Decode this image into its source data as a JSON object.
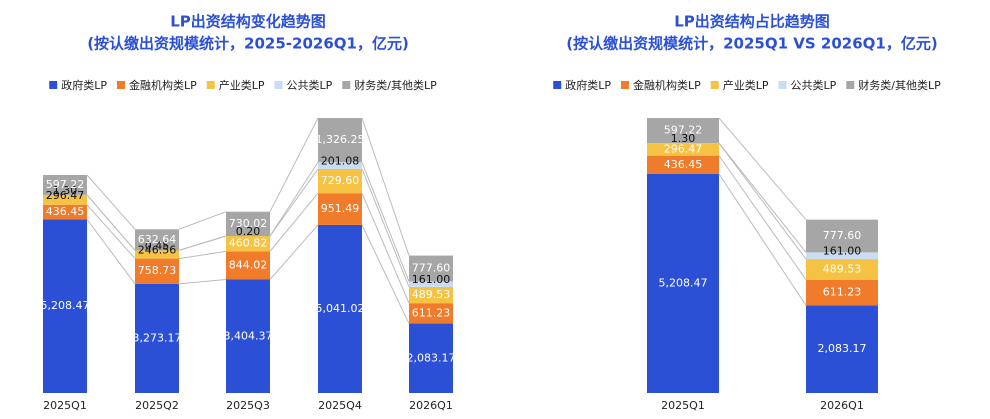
{
  "chart_data": [
    {
      "type": "bar",
      "stacked": true,
      "legend": "top",
      "title": "LP出资结构变化趋势图",
      "subtitle": "(按认缴出资规模统计，2025-2026Q1，亿元)",
      "categories": [
        "2025Q1",
        "2025Q2",
        "2025Q3",
        "2025Q4",
        "2026Q1"
      ],
      "series": [
        {
          "name": "政府类LP",
          "color": "#2b50d6",
          "values": [
            5208.47,
            3273.17,
            3404.37,
            5041.02,
            2083.17
          ],
          "value_labels": [
            "5,208.47",
            "3,273.17",
            "3,404.37",
            "5,041.02",
            "2,083.17"
          ]
        },
        {
          "name": "金融机构类LP",
          "color": "#f07b2b",
          "values": [
            436.45,
            758.73,
            844.02,
            951.49,
            611.23
          ],
          "value_labels": [
            "436.45",
            "758.73",
            "844.02",
            "951.49",
            "611.23"
          ]
        },
        {
          "name": "产业类LP",
          "color": "#f6c244",
          "values": [
            296.47,
            246.56,
            460.82,
            729.6,
            489.53
          ],
          "value_labels": [
            "296.47",
            "246.56",
            "460.82",
            "729.60",
            "489.53"
          ]
        },
        {
          "name": "公共类LP",
          "color": "#c8dcf4",
          "values": [
            1.3,
            0.45,
            0.2,
            201.08,
            161
          ],
          "value_labels": [
            "1.30",
            "0.45",
            "0.20",
            "201.08",
            "161.00"
          ]
        },
        {
          "name": "财务类/其他类LP",
          "color": "#a6a6a6",
          "values": [
            597.22,
            632.64,
            730.02,
            1326.25,
            777.6
          ],
          "value_labels": [
            "597.22",
            "632.64",
            "730.02",
            "1,326.25",
            "777.60"
          ]
        }
      ]
    },
    {
      "type": "bar",
      "stacked": true,
      "legend": "top",
      "title": "LP出资结构占比趋势图",
      "subtitle": "(按认缴出资规模统计，2025Q1 VS 2026Q1，亿元)",
      "categories": [
        "2025Q1",
        "2026Q1"
      ],
      "series": [
        {
          "name": "政府类LP",
          "color": "#2b50d6",
          "values": [
            5208.47,
            2083.17
          ],
          "value_labels": [
            "5,208.47",
            "2,083.17"
          ]
        },
        {
          "name": "金融机构类LP",
          "color": "#f07b2b",
          "values": [
            436.45,
            611.23
          ],
          "value_labels": [
            "436.45",
            "611.23"
          ]
        },
        {
          "name": "产业类LP",
          "color": "#f6c244",
          "values": [
            296.47,
            489.53
          ],
          "value_labels": [
            "296.47",
            "489.53"
          ]
        },
        {
          "name": "公共类LP",
          "color": "#c8dcf4",
          "values": [
            1.3,
            161
          ],
          "value_labels": [
            "1.30",
            "161.00"
          ]
        },
        {
          "name": "财务类/其他类LP",
          "color": "#a6a6a6",
          "values": [
            597.22,
            777.6
          ],
          "value_labels": [
            "597.22",
            "777.60"
          ]
        }
      ]
    }
  ]
}
